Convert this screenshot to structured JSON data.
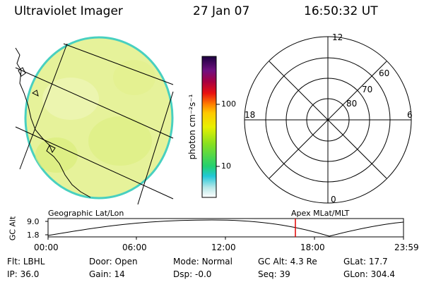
{
  "header": {
    "instrument": "Ultraviolet Imager",
    "date": "27 Jan 07",
    "time": "16:50:32 UT"
  },
  "colorbar": {
    "unit_label": "photon cm⁻²s⁻¹",
    "ticks": [
      "100",
      "10"
    ],
    "stops": [
      "#ffffff",
      "#b8e8e8",
      "#22c8d8",
      "#22d070",
      "#88e020",
      "#e8f000",
      "#ffc800",
      "#ff8000",
      "#e81010",
      "#a80040",
      "#701080",
      "#1c0040"
    ]
  },
  "polar": {
    "mlt_labels": [
      "12",
      "18",
      "6",
      "0"
    ],
    "lat_labels": [
      "60",
      "70",
      "80"
    ]
  },
  "image": {
    "fill_color": "#e6f29a",
    "edge_color": "#48d0c0"
  },
  "timeline": {
    "left_title": "Geographic Lat/Lon",
    "right_title": "Apex MLat/MLT",
    "axis_label": "GC Alt",
    "y_ticks": [
      "9.0",
      "1.8"
    ],
    "time_ticks": [
      "00:00",
      "06:00",
      "12:00",
      "18:00",
      "23:59"
    ],
    "marker_color": "#e00000"
  },
  "info": {
    "rows": [
      [
        {
          "key": "Flt:",
          "value": "LBHL"
        },
        {
          "key": "Door:",
          "value": "Open"
        },
        {
          "key": "Mode:",
          "value": "Normal"
        },
        {
          "key": "GC Alt:",
          "value": "4.3 Re"
        },
        {
          "key": "GLat:",
          "value": "17.7"
        }
      ],
      [
        {
          "key": "IP:",
          "value": "36.0"
        },
        {
          "key": "Gain:",
          "value": "14"
        },
        {
          "key": "Dsp:",
          "value": "-0.0"
        },
        {
          "key": "Seq:",
          "value": "39"
        },
        {
          "key": "GLon:",
          "value": "304.4"
        }
      ]
    ]
  }
}
